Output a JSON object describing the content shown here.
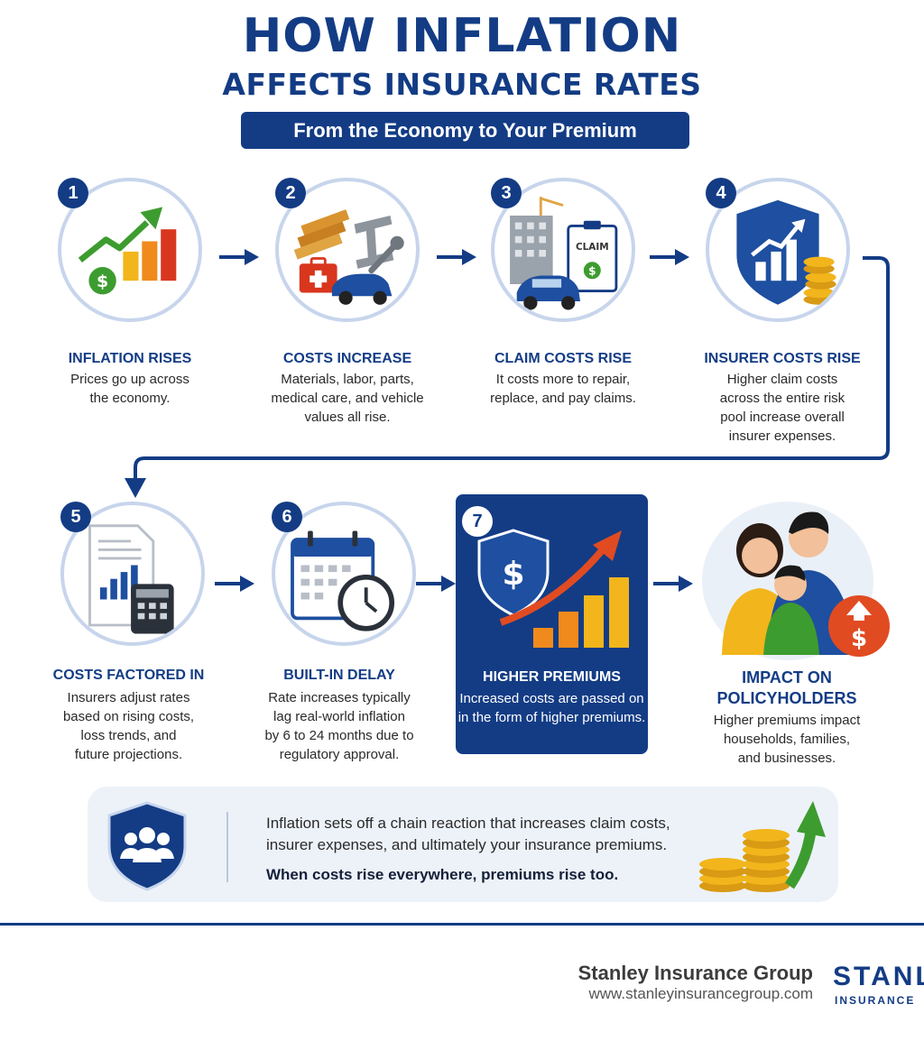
{
  "title_line1": "HOW INFLATION",
  "title_line2": "AFFECTS INSURANCE RATES",
  "subtitle": "From the Economy to Your Premium",
  "steps": [
    {
      "number": "1",
      "title": "INFLATION RISES",
      "desc": [
        "Prices go up across",
        "the economy."
      ],
      "icon": "growth-chart-icon"
    },
    {
      "number": "2",
      "title": "COSTS INCREASE",
      "desc": [
        "Materials, labor, parts,",
        "medical care, and vehicle",
        "values all rise."
      ],
      "icon": "materials-icon"
    },
    {
      "number": "3",
      "title": "CLAIM COSTS RISE",
      "desc": [
        "It costs more to repair,",
        "replace, and pay claims."
      ],
      "icon": "claim-icon",
      "claim_label": "CLAIM"
    },
    {
      "number": "4",
      "title": "INSURER COSTS RISE",
      "desc": [
        "Higher claim costs",
        "across the entire risk",
        "pool increase overall",
        "insurer expenses."
      ],
      "icon": "shield-chart-icon"
    },
    {
      "number": "5",
      "title": "COSTS FACTORED IN",
      "desc": [
        "Insurers adjust rates",
        "based on rising costs,",
        "loss trends, and",
        "future projections."
      ],
      "icon": "calculator-icon"
    },
    {
      "number": "6",
      "title": "BUILT-IN DELAY",
      "desc": [
        "Rate increases typically",
        "lag real-world inflation",
        "by 6 to 24 months due to",
        "regulatory approval."
      ],
      "icon": "calendar-clock-icon"
    },
    {
      "number": "7",
      "title": "HIGHER PREMIUMS",
      "desc": [
        "Increased costs are passed on",
        "in the form of higher premiums."
      ],
      "icon": "premium-chart-icon"
    },
    {
      "number": "",
      "title_lines": [
        "IMPACT ON",
        "POLICYHOLDERS"
      ],
      "desc": [
        "Higher premiums impact",
        "households, families,",
        "and businesses."
      ],
      "icon": "family-icon"
    }
  ],
  "banner": {
    "line1": "Inflation sets off a chain reaction that increases claim costs,",
    "line2": "insurer expenses, and ultimately your insurance premiums.",
    "bold": "When costs rise everywhere, premiums rise too."
  },
  "footer": {
    "company": "Stanley Insurance Group",
    "website": "www.stanleyinsurancegroup.com",
    "logo_text": "STANLEY",
    "logo_sub": "INSURANCE"
  },
  "colors": {
    "navy": "#133c85",
    "circle_border": "#c7d5ec",
    "green": "#3d9c2f",
    "orange": "#f08a1c",
    "red": "#d9361e",
    "gold": "#f2b51b"
  }
}
